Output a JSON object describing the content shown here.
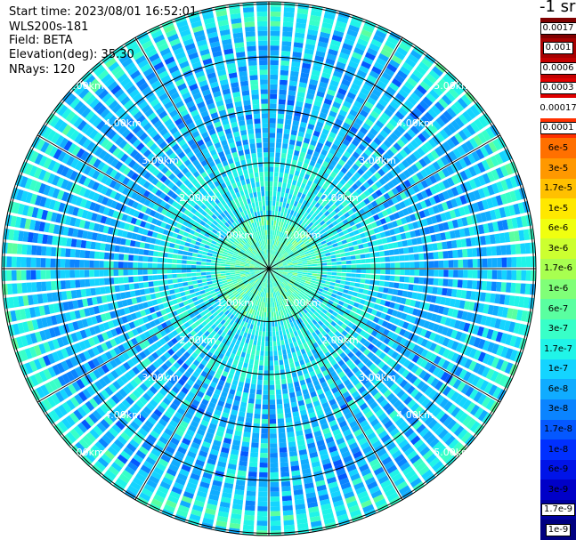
{
  "info": {
    "start_time": "Start time: 2023/08/01 16:52:01",
    "instrument": "WLS200s-181",
    "field": "Field: BETA",
    "elevation": "Elevation(deg): 35.30",
    "nrays": "NRays: 120"
  },
  "ppi": {
    "ring_labels": [
      "1.00km",
      "2.00km",
      "3.00km",
      "4.00km",
      "5.00km"
    ],
    "n_rays": 120,
    "n_spokes": 12
  },
  "colorbar": {
    "title": "-1 sr",
    "levels": [
      {
        "label": "0.0017",
        "color": "#7f0000",
        "boxed": true
      },
      {
        "label": "0.001",
        "color": "#a60000",
        "boxed": true
      },
      {
        "label": "0.0006",
        "color": "#c30000",
        "boxed": true
      },
      {
        "label": "0.0003",
        "color": "#e00000",
        "boxed": true
      },
      {
        "label": "0.00017",
        "color": "#ffffff",
        "boxed": false
      },
      {
        "label": "0.0001",
        "color": "#ff3000",
        "boxed": true
      },
      {
        "label": "6e-5",
        "color": "#ff7000",
        "boxed": false
      },
      {
        "label": "3e-5",
        "color": "#ff9800",
        "boxed": false
      },
      {
        "label": "1.7e-5",
        "color": "#ffc000",
        "boxed": false
      },
      {
        "label": "1e-5",
        "color": "#ffe800",
        "boxed": false
      },
      {
        "label": "6e-6",
        "color": "#f0ff10",
        "boxed": false
      },
      {
        "label": "3e-6",
        "color": "#ccff30",
        "boxed": false
      },
      {
        "label": "1.7e-6",
        "color": "#a8ff50",
        "boxed": false
      },
      {
        "label": "1e-6",
        "color": "#80ff78",
        "boxed": false
      },
      {
        "label": "6e-7",
        "color": "#5affa0",
        "boxed": false
      },
      {
        "label": "3e-7",
        "color": "#38ffc8",
        "boxed": false
      },
      {
        "label": "1.7e-7",
        "color": "#20f4e8",
        "boxed": false
      },
      {
        "label": "1e-7",
        "color": "#14d4ff",
        "boxed": false
      },
      {
        "label": "6e-8",
        "color": "#10acff",
        "boxed": false
      },
      {
        "label": "3e-8",
        "color": "#0a84ff",
        "boxed": false
      },
      {
        "label": "1.7e-8",
        "color": "#0458ff",
        "boxed": false
      },
      {
        "label": "1e-8",
        "color": "#0030ff",
        "boxed": false
      },
      {
        "label": "6e-9",
        "color": "#0014e8",
        "boxed": false
      },
      {
        "label": "3e-9",
        "color": "#0000c8",
        "boxed": false
      },
      {
        "label": "1.7e-9",
        "color": "#0000a0",
        "boxed": true
      },
      {
        "label": "1e-9",
        "color": "#000080",
        "boxed": true
      }
    ]
  }
}
